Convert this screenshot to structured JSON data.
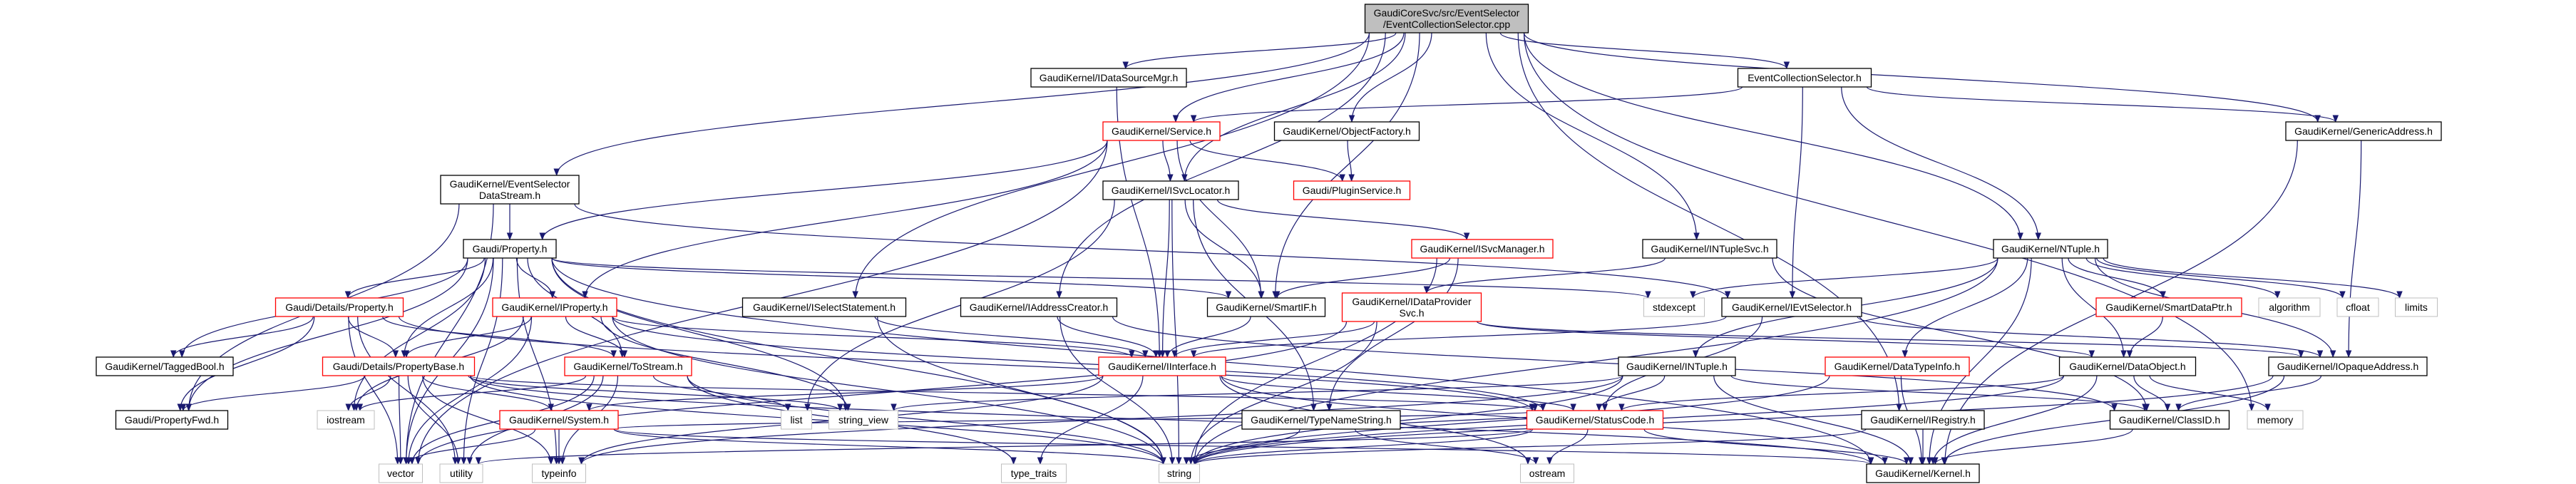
{
  "colors": {
    "edge": "#191970",
    "root_fill": "#bfbfbf",
    "normal_border": "#000000",
    "red_border": "#ff0000",
    "gray_border": "#bfbfbf"
  },
  "nodes": [
    {
      "id": "root",
      "label": [
        "GaudiCoreSvc/src/EventSelector",
        "/EventCollectionSelector.cpp"
      ],
      "style": "root"
    },
    {
      "id": "IDataSourceMgr",
      "label": [
        "GaudiKernel/IDataSourceMgr.h"
      ],
      "style": "normal"
    },
    {
      "id": "EventCollectionSelector",
      "label": [
        "EventCollectionSelector.h"
      ],
      "style": "normal"
    },
    {
      "id": "Service",
      "label": [
        "GaudiKernel/Service.h"
      ],
      "style": "red"
    },
    {
      "id": "ObjectFactory",
      "label": [
        "GaudiKernel/ObjectFactory.h"
      ],
      "style": "normal"
    },
    {
      "id": "GenericAddress",
      "label": [
        "GaudiKernel/GenericAddress.h"
      ],
      "style": "normal"
    },
    {
      "id": "EventSelectorDataStream",
      "label": [
        "GaudiKernel/EventSelector",
        "DataStream.h"
      ],
      "style": "normal"
    },
    {
      "id": "ISvcLocator",
      "label": [
        "GaudiKernel/ISvcLocator.h"
      ],
      "style": "normal"
    },
    {
      "id": "PluginService",
      "label": [
        "Gaudi/PluginService.h"
      ],
      "style": "red"
    },
    {
      "id": "Property",
      "label": [
        "Gaudi/Property.h"
      ],
      "style": "normal"
    },
    {
      "id": "ISvcManager",
      "label": [
        "GaudiKernel/ISvcManager.h"
      ],
      "style": "red"
    },
    {
      "id": "INTupleSvc",
      "label": [
        "GaudiKernel/INTupleSvc.h"
      ],
      "style": "normal"
    },
    {
      "id": "NTuple",
      "label": [
        "GaudiKernel/NTuple.h"
      ],
      "style": "normal"
    },
    {
      "id": "DetailsProperty",
      "label": [
        "Gaudi/Details/Property.h"
      ],
      "style": "red"
    },
    {
      "id": "IProperty",
      "label": [
        "GaudiKernel/IProperty.h"
      ],
      "style": "red"
    },
    {
      "id": "ISelectStatement",
      "label": [
        "GaudiKernel/ISelectStatement.h"
      ],
      "style": "normal"
    },
    {
      "id": "IAddressCreator",
      "label": [
        "GaudiKernel/IAddressCreator.h"
      ],
      "style": "normal"
    },
    {
      "id": "SmartIF",
      "label": [
        "GaudiKernel/SmartIF.h"
      ],
      "style": "normal"
    },
    {
      "id": "IDataProviderSvc",
      "label": [
        "GaudiKernel/IDataProvider",
        "Svc.h"
      ],
      "style": "red"
    },
    {
      "id": "stdexcept",
      "label": [
        "stdexcept"
      ],
      "style": "gray"
    },
    {
      "id": "IEvtSelector",
      "label": [
        "GaudiKernel/IEvtSelector.h"
      ],
      "style": "normal"
    },
    {
      "id": "SmartDataPtr",
      "label": [
        "GaudiKernel/SmartDataPtr.h"
      ],
      "style": "red"
    },
    {
      "id": "algorithm",
      "label": [
        "algorithm"
      ],
      "style": "gray"
    },
    {
      "id": "cfloat",
      "label": [
        "cfloat"
      ],
      "style": "gray"
    },
    {
      "id": "limits",
      "label": [
        "limits"
      ],
      "style": "gray"
    },
    {
      "id": "TaggedBool",
      "label": [
        "GaudiKernel/TaggedBool.h"
      ],
      "style": "normal"
    },
    {
      "id": "PropertyBase",
      "label": [
        "Gaudi/Details/PropertyBase.h"
      ],
      "style": "red"
    },
    {
      "id": "ToStream",
      "label": [
        "GaudiKernel/ToStream.h"
      ],
      "style": "red"
    },
    {
      "id": "IInterface",
      "label": [
        "GaudiKernel/IInterface.h"
      ],
      "style": "red"
    },
    {
      "id": "INTuple",
      "label": [
        "GaudiKernel/INTuple.h"
      ],
      "style": "normal"
    },
    {
      "id": "DataTypeInfo",
      "label": [
        "GaudiKernel/DataTypeInfo.h"
      ],
      "style": "red"
    },
    {
      "id": "DataObject",
      "label": [
        "GaudiKernel/DataObject.h"
      ],
      "style": "normal"
    },
    {
      "id": "IOpaqueAddress",
      "label": [
        "GaudiKernel/IOpaqueAddress.h"
      ],
      "style": "normal"
    },
    {
      "id": "PropertyFwd",
      "label": [
        "Gaudi/PropertyFwd.h"
      ],
      "style": "normal"
    },
    {
      "id": "iostream",
      "label": [
        "iostream"
      ],
      "style": "gray"
    },
    {
      "id": "System",
      "label": [
        "GaudiKernel/System.h"
      ],
      "style": "red"
    },
    {
      "id": "list",
      "label": [
        "list"
      ],
      "style": "gray"
    },
    {
      "id": "string_view",
      "label": [
        "string_view"
      ],
      "style": "gray"
    },
    {
      "id": "TypeNameString",
      "label": [
        "GaudiKernel/TypeNameString.h"
      ],
      "style": "normal"
    },
    {
      "id": "StatusCode",
      "label": [
        "GaudiKernel/StatusCode.h"
      ],
      "style": "red"
    },
    {
      "id": "IRegistry",
      "label": [
        "GaudiKernel/IRegistry.h"
      ],
      "style": "normal"
    },
    {
      "id": "ClassID",
      "label": [
        "GaudiKernel/ClassID.h"
      ],
      "style": "normal"
    },
    {
      "id": "memory",
      "label": [
        "memory"
      ],
      "style": "gray"
    },
    {
      "id": "vector",
      "label": [
        "vector"
      ],
      "style": "gray"
    },
    {
      "id": "utility",
      "label": [
        "utility"
      ],
      "style": "gray"
    },
    {
      "id": "typeinfo",
      "label": [
        "typeinfo"
      ],
      "style": "gray"
    },
    {
      "id": "type_traits",
      "label": [
        "type_traits"
      ],
      "style": "gray"
    },
    {
      "id": "string",
      "label": [
        "string"
      ],
      "style": "gray"
    },
    {
      "id": "ostream",
      "label": [
        "ostream"
      ],
      "style": "gray"
    },
    {
      "id": "Kernel",
      "label": [
        "GaudiKernel/Kernel.h"
      ],
      "style": "normal"
    }
  ],
  "edges": [
    [
      "root",
      "EventSelectorDataStream"
    ],
    [
      "root",
      "IDataSourceMgr"
    ],
    [
      "root",
      "Service"
    ],
    [
      "root",
      "ObjectFactory"
    ],
    [
      "root",
      "ISvcLocator"
    ],
    [
      "root",
      "SmartIF"
    ],
    [
      "root",
      "ISelectStatement"
    ],
    [
      "root",
      "IAddressCreator"
    ],
    [
      "root",
      "INTupleSvc"
    ],
    [
      "root",
      "EventCollectionSelector"
    ],
    [
      "root",
      "IRegistry"
    ],
    [
      "root",
      "NTuple"
    ],
    [
      "root",
      "GenericAddress"
    ],
    [
      "root",
      "memory"
    ],
    [
      "EventCollectionSelector",
      "Service"
    ],
    [
      "EventCollectionSelector",
      "IEvtSelector"
    ],
    [
      "EventCollectionSelector",
      "NTuple"
    ],
    [
      "EventCollectionSelector",
      "GenericAddress"
    ],
    [
      "EventSelectorDataStream",
      "Property"
    ],
    [
      "EventSelectorDataStream",
      "IEvtSelector"
    ],
    [
      "EventSelectorDataStream",
      "PropertyFwd"
    ],
    [
      "EventSelectorDataStream",
      "vector"
    ],
    [
      "IDataSourceMgr",
      "IInterface"
    ],
    [
      "Service",
      "ISvcLocator"
    ],
    [
      "Service",
      "PluginService"
    ],
    [
      "Service",
      "SmartIF"
    ],
    [
      "Service",
      "Property"
    ],
    [
      "Service",
      "IProperty"
    ],
    [
      "Service",
      "vector"
    ],
    [
      "ObjectFactory",
      "PluginService"
    ],
    [
      "ISvcLocator",
      "IInterface"
    ],
    [
      "ISvcLocator",
      "SmartIF"
    ],
    [
      "ISvcLocator",
      "ISvcManager"
    ],
    [
      "ISvcLocator",
      "string"
    ],
    [
      "ISvcLocator",
      "list"
    ],
    [
      "ISvcLocator",
      "TypeNameString"
    ],
    [
      "ISvcManager",
      "SmartIF"
    ],
    [
      "ISvcManager",
      "TypeNameString"
    ],
    [
      "ISvcManager",
      "string"
    ],
    [
      "INTupleSvc",
      "IDataProviderSvc"
    ],
    [
      "INTupleSvc",
      "ClassID"
    ],
    [
      "Property",
      "DetailsProperty"
    ],
    [
      "Property",
      "IProperty"
    ],
    [
      "Property",
      "PropertyBase"
    ],
    [
      "Property",
      "ToStream"
    ],
    [
      "Property",
      "TaggedBool"
    ],
    [
      "Property",
      "PropertyFwd"
    ],
    [
      "Property",
      "SmartIF"
    ],
    [
      "Property",
      "string"
    ],
    [
      "Property",
      "string_view"
    ],
    [
      "Property",
      "stdexcept"
    ],
    [
      "Property",
      "typeinfo"
    ],
    [
      "Property",
      "utility"
    ],
    [
      "Property",
      "vector"
    ],
    [
      "Property",
      "iostream"
    ],
    [
      "Property",
      "Kernel"
    ],
    [
      "DetailsProperty",
      "PropertyBase"
    ],
    [
      "DetailsProperty",
      "ToStream"
    ],
    [
      "DetailsProperty",
      "TaggedBool"
    ],
    [
      "DetailsProperty",
      "PropertyFwd"
    ],
    [
      "DetailsProperty",
      "vector"
    ],
    [
      "DetailsProperty",
      "utility"
    ],
    [
      "DetailsProperty",
      "StatusCode"
    ],
    [
      "IProperty",
      "PropertyBase"
    ],
    [
      "IProperty",
      "ToStream"
    ],
    [
      "IProperty",
      "IInterface"
    ],
    [
      "IProperty",
      "iostream"
    ],
    [
      "IProperty",
      "vector"
    ],
    [
      "IProperty",
      "string"
    ],
    [
      "IProperty",
      "string_view"
    ],
    [
      "IProperty",
      "StatusCode"
    ],
    [
      "PropertyBase",
      "System"
    ],
    [
      "PropertyBase",
      "PropertyFwd"
    ],
    [
      "PropertyBase",
      "iostream"
    ],
    [
      "PropertyBase",
      "vector"
    ],
    [
      "PropertyBase",
      "utility"
    ],
    [
      "PropertyBase",
      "typeinfo"
    ],
    [
      "PropertyBase",
      "string"
    ],
    [
      "PropertyBase",
      "string_view"
    ],
    [
      "PropertyBase",
      "Kernel"
    ],
    [
      "PropertyBase",
      "StatusCode"
    ],
    [
      "ToStream",
      "iostream"
    ],
    [
      "ToStream",
      "list"
    ],
    [
      "ToStream",
      "vector"
    ],
    [
      "ToStream",
      "string"
    ],
    [
      "ToStream",
      "type_traits"
    ],
    [
      "ToStream",
      "utility"
    ],
    [
      "ToStream",
      "typeinfo"
    ],
    [
      "System",
      "typeinfo"
    ],
    [
      "System",
      "vector"
    ],
    [
      "System",
      "string"
    ],
    [
      "System",
      "Kernel"
    ],
    [
      "System",
      "StatusCode"
    ],
    [
      "ISelectStatement",
      "IInterface"
    ],
    [
      "ISelectStatement",
      "string"
    ],
    [
      "IAddressCreator",
      "IInterface"
    ],
    [
      "IAddressCreator",
      "ClassID"
    ],
    [
      "IAddressCreator",
      "string"
    ],
    [
      "SmartIF",
      "IInterface"
    ],
    [
      "IDataProviderSvc",
      "IInterface"
    ],
    [
      "IDataProviderSvc",
      "DataObject"
    ],
    [
      "IDataProviderSvc",
      "IOpaqueAddress"
    ],
    [
      "IDataProviderSvc",
      "string"
    ],
    [
      "IDataProviderSvc",
      "vector"
    ],
    [
      "IInterface",
      "System"
    ],
    [
      "IInterface",
      "StatusCode"
    ],
    [
      "IInterface",
      "Kernel"
    ],
    [
      "IInterface",
      "ostream"
    ],
    [
      "IInterface",
      "type_traits"
    ],
    [
      "IInterface",
      "typeinfo"
    ],
    [
      "INTuple",
      "StatusCode"
    ],
    [
      "INTuple",
      "Kernel"
    ],
    [
      "INTuple",
      "ClassID"
    ],
    [
      "INTuple",
      "string"
    ],
    [
      "INTuple",
      "string_view"
    ],
    [
      "INTuple",
      "typeinfo"
    ],
    [
      "TypeNameString",
      "string"
    ],
    [
      "TypeNameString",
      "ostream"
    ],
    [
      "TypeNameString",
      "StatusCode"
    ],
    [
      "StatusCode",
      "ostream"
    ],
    [
      "StatusCode",
      "Kernel"
    ],
    [
      "StatusCode",
      "utility"
    ],
    [
      "StatusCode",
      "string"
    ],
    [
      "NTuple",
      "INTuple"
    ],
    [
      "NTuple",
      "DataObject"
    ],
    [
      "NTuple",
      "SmartDataPtr"
    ],
    [
      "NTuple",
      "DataTypeInfo"
    ],
    [
      "NTuple",
      "IOpaqueAddress"
    ],
    [
      "NTuple",
      "algorithm"
    ],
    [
      "NTuple",
      "cfloat"
    ],
    [
      "NTuple",
      "limits"
    ],
    [
      "NTuple",
      "stdexcept"
    ],
    [
      "NTuple",
      "string"
    ],
    [
      "NTuple",
      "Kernel"
    ],
    [
      "IEvtSelector",
      "IInterface"
    ],
    [
      "IEvtSelector",
      "StatusCode"
    ],
    [
      "IEvtSelector",
      "IOpaqueAddress"
    ],
    [
      "SmartDataPtr",
      "DataObject"
    ],
    [
      "DataTypeInfo",
      "string"
    ],
    [
      "DataTypeInfo",
      "Kernel"
    ],
    [
      "DataObject",
      "ClassID"
    ],
    [
      "DataObject",
      "StatusCode"
    ],
    [
      "DataObject",
      "memory"
    ],
    [
      "DataObject",
      "string"
    ],
    [
      "DataObject",
      "Kernel"
    ],
    [
      "IOpaqueAddress",
      "ClassID"
    ],
    [
      "IOpaqueAddress",
      "Kernel"
    ],
    [
      "IOpaqueAddress",
      "string"
    ],
    [
      "IRegistry",
      "Kernel"
    ],
    [
      "IRegistry",
      "string"
    ],
    [
      "ClassID",
      "Kernel"
    ],
    [
      "GenericAddress",
      "IOpaqueAddress"
    ],
    [
      "GenericAddress",
      "Kernel"
    ]
  ]
}
